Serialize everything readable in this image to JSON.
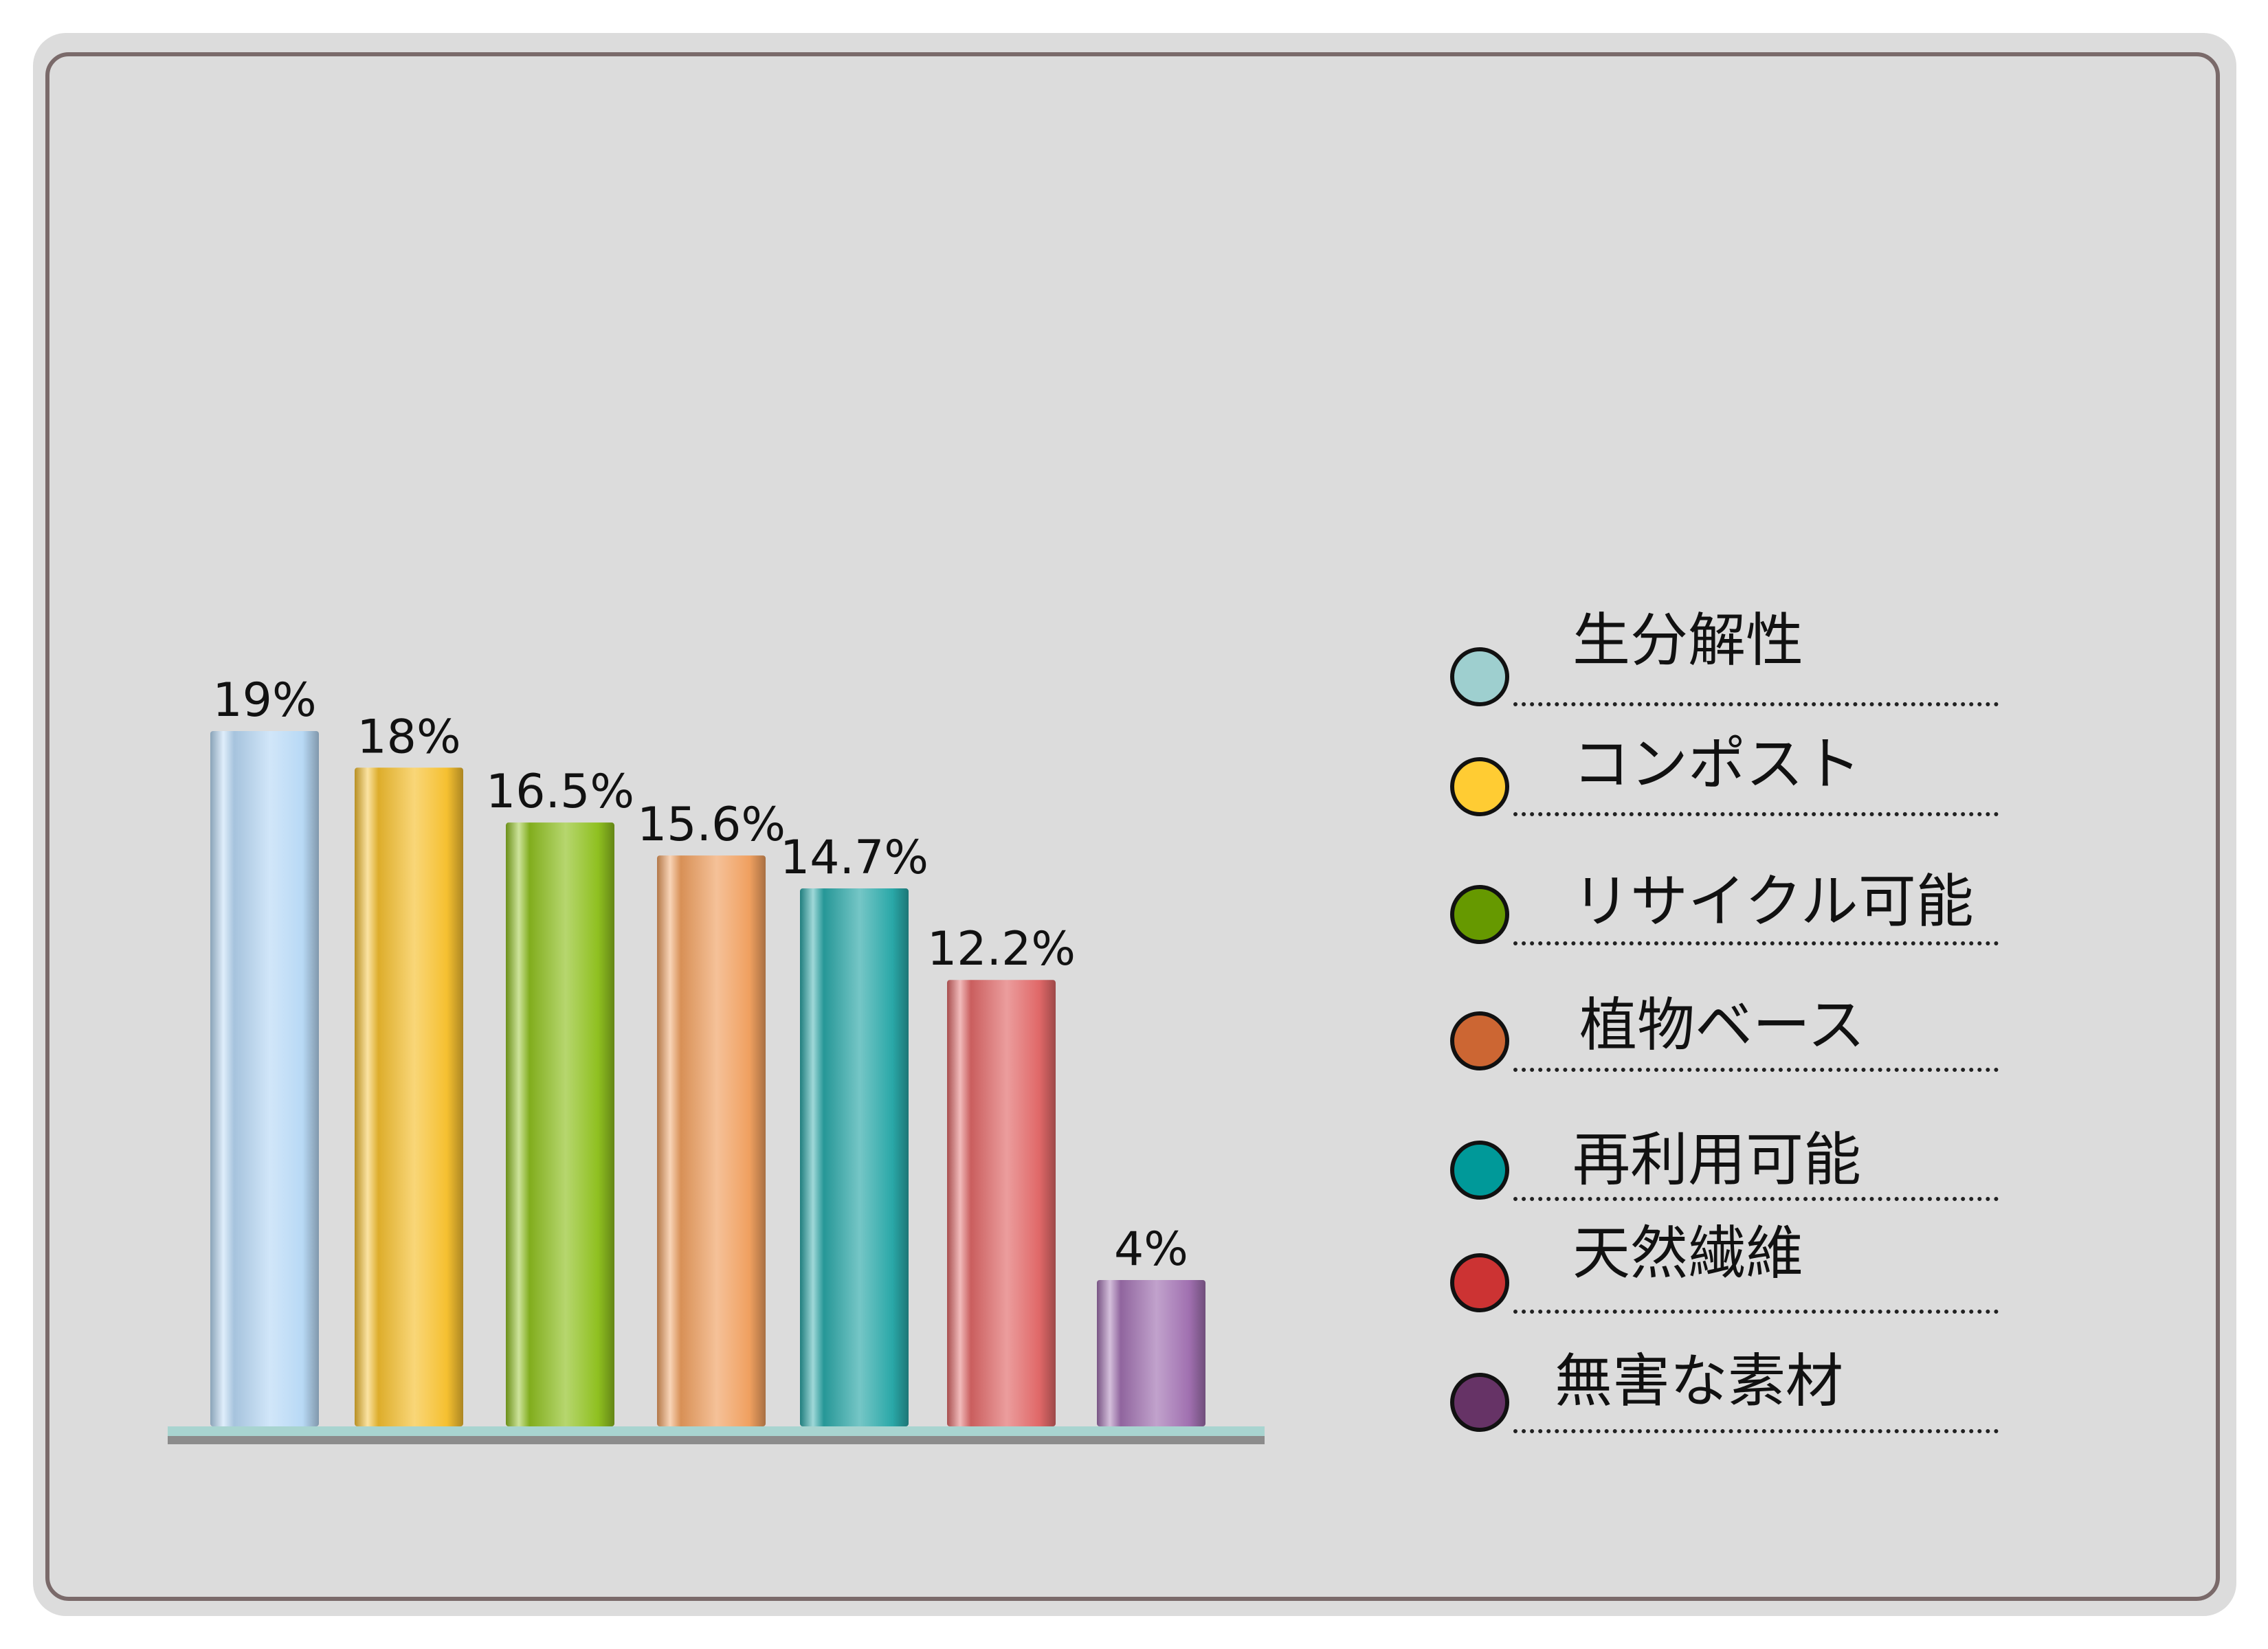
{
  "chart_data": {
    "type": "bar",
    "categories": [
      "生分解性",
      "コンポスト",
      "リサイクル可能",
      "植物ベース",
      "再利用可能",
      "天然繊維",
      "無害な素材"
    ],
    "values": [
      19,
      18,
      16.5,
      15.6,
      14.7,
      12.2,
      4
    ],
    "value_labels": [
      "19%",
      "18%",
      "16.5%",
      "15.6%",
      "14.7%",
      "12.2%",
      "4%"
    ],
    "colors": [
      "#b8d9f5",
      "#f5c030",
      "#8fc020",
      "#f0a060",
      "#2aa8a8",
      "#e06868",
      "#a070b0"
    ],
    "legend_colors": [
      "#9ecfcf",
      "#ffcc33",
      "#669900",
      "#cc6633",
      "#009999",
      "#cc3333",
      "#663366"
    ],
    "legend_position": "right",
    "grid": false,
    "ylim": [
      0,
      19
    ]
  }
}
